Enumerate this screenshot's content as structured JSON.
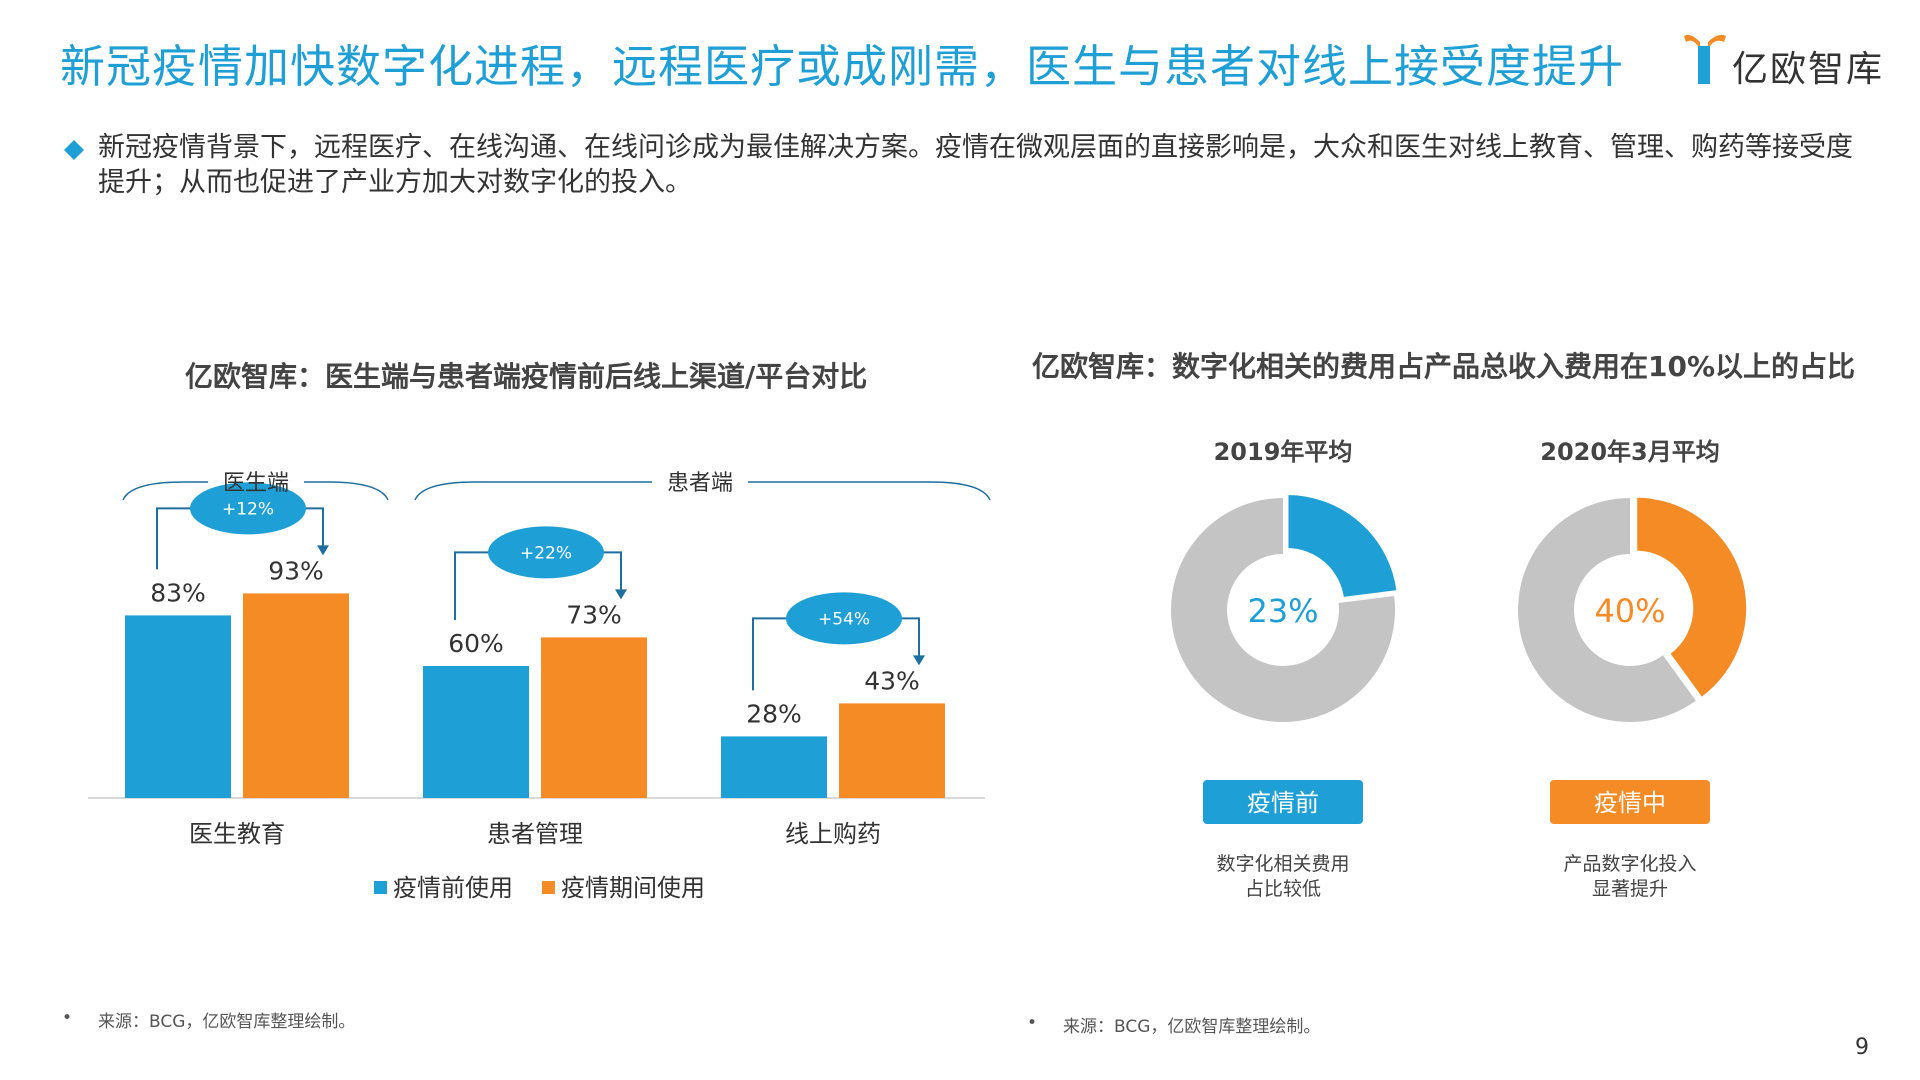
{
  "title": "新冠疫情加快数字化进程，远程医疗或成刚需，医生与患者对线上接受度提升",
  "logo": {
    "text": "亿欧智库"
  },
  "intro": "新冠疫情背景下，远程医疗、在线沟通、在线问诊成为最佳解决方案。疫情在微观层面的直接影响是，大众和医生对线上教育、管理、购药等接受度提升；从而也促进了产业方加大对数字化的投入。",
  "colors": {
    "blue": "#1e9fd6",
    "orange": "#f58b24",
    "gray": "#c4c4c4",
    "title": "#1e9fd6"
  },
  "chart_data": [
    {
      "type": "bar",
      "title": "亿欧智库：医生端与患者端疫情前后线上渠道/平台对比",
      "categories": [
        "医生教育",
        "患者管理",
        "线上购药"
      ],
      "series": [
        {
          "name": "疫情前使用",
          "values": [
            83,
            60,
            28
          ],
          "labels": [
            "83%",
            "60%",
            "28%"
          ]
        },
        {
          "name": "疫情期间使用",
          "values": [
            93,
            73,
            43
          ],
          "labels": [
            "93%",
            "73%",
            "43%"
          ]
        }
      ],
      "changes": [
        "+12%",
        "+22%",
        "+54%"
      ],
      "groups": [
        {
          "label": "医生端",
          "categories": [
            "医生教育"
          ]
        },
        {
          "label": "患者端",
          "categories": [
            "患者管理",
            "线上购药"
          ]
        }
      ],
      "ylim": [
        0,
        100
      ],
      "grid": false,
      "legend": "bottom"
    },
    {
      "type": "pie",
      "title": "亿欧智库：数字化相关的费用占产品总收入费用在10%以上的占比",
      "donuts": [
        {
          "heading": "2019年平均",
          "value": 23,
          "label": "23%",
          "tag": "疫情前",
          "note": [
            "数字化相关费用",
            "占比较低"
          ],
          "color": "#1e9fd6"
        },
        {
          "heading": "2020年3月平均",
          "value": 40,
          "label": "40%",
          "tag": "疫情中",
          "note": [
            "产品数字化投入",
            "显著提升"
          ],
          "color": "#f58b24"
        }
      ]
    }
  ],
  "source": "来源：BCG，亿欧智库整理绘制。",
  "page_number": "9"
}
